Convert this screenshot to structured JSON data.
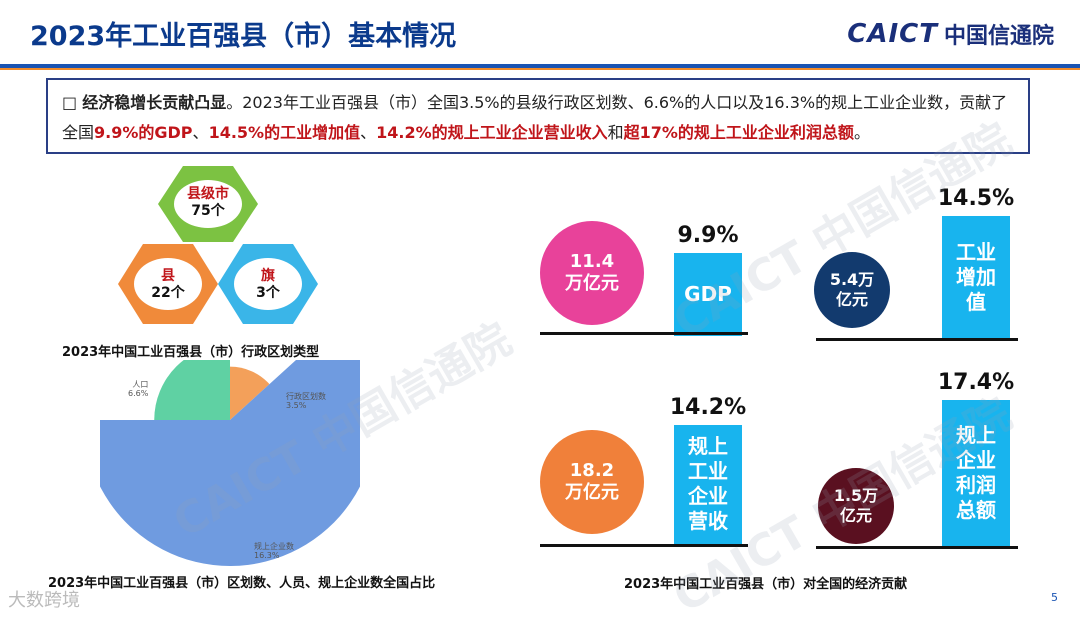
{
  "header": {
    "title": "2023年工业百强县（市）基本情况",
    "brand_logo": "CAICT",
    "brand_name": "中国信通院"
  },
  "summary": {
    "bullet": "□",
    "lead": "经济稳增长贡献凸显",
    "text1": "。2023年工业百强县（市）全国3.5%的县级行政区划数、6.6%的人口以及16.3%的规上工业企业数，贡献了全国",
    "h1": "9.9%的GDP",
    "sep1": "、",
    "h2": "14.5%的工业增加值",
    "sep2": "、",
    "h3": "14.2%的规上工业企业营业收入",
    "sep3": "和",
    "h4": "超17%的规上工业企业利润总额",
    "end": "。"
  },
  "hexagons": [
    {
      "name": "县级市",
      "count": "75个",
      "color": "#7cc242"
    },
    {
      "name": "县",
      "count": "22个",
      "color": "#f08a3a"
    },
    {
      "name": "旗",
      "count": "3个",
      "color": "#3ab5e8"
    }
  ],
  "captions": {
    "hex": "2023年中国工业百强县（市）行政区划类型",
    "pie": "2023年中国工业百强县（市）区划数、人员、规上企业数全国占比",
    "metrics": "2023年中国工业百强县（市）对全国的经济贡献"
  },
  "chart_data": {
    "type": "pie",
    "slices": [
      {
        "label": "行政区划数",
        "value": 3.5,
        "value_label": "3.5%",
        "color": "#f3a05a"
      },
      {
        "label": "规上企业数",
        "value": 16.3,
        "value_label": "16.3%",
        "color": "#6f9be0"
      },
      {
        "label": "人口",
        "value": 6.6,
        "value_label": "6.6%",
        "color": "#5fd1a3"
      }
    ]
  },
  "metrics": [
    {
      "amount_line1": "11.4",
      "amount_line2": "万亿元",
      "circle_color": "#e8429a",
      "bar_lines": [
        "GDP"
      ],
      "pct": "9.9%",
      "share": 9.9
    },
    {
      "amount_line1": "5.4万",
      "amount_line2": "亿元",
      "circle_color": "#123a6e",
      "bar_lines": [
        "工业",
        "增加",
        "值"
      ],
      "pct": "14.5%",
      "share": 14.5
    },
    {
      "amount_line1": "18.2",
      "amount_line2": "万亿元",
      "circle_color": "#f0803a",
      "bar_lines": [
        "规上",
        "工业",
        "企业",
        "营收"
      ],
      "pct": "14.2%",
      "share": 14.2
    },
    {
      "amount_line1": "1.5万",
      "amount_line2": "亿元",
      "circle_color": "#5a1020",
      "bar_lines": [
        "规上",
        "企业",
        "利润",
        "总额"
      ],
      "pct": "17.4%",
      "share": 17.4
    }
  ],
  "watermark": "CAICT 中国信通院",
  "footer": {
    "page_number": "5",
    "mark": "大数跨境"
  }
}
